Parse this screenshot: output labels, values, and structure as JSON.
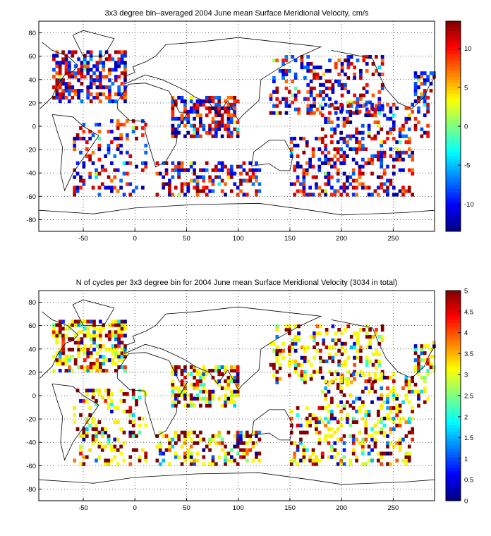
{
  "chart_data": [
    {
      "type": "heatmap",
      "title": "3x3 degree bin–averaged 2004 June mean Surface Meridional Velocity, cm/s",
      "xlabel": "",
      "ylabel": "",
      "x_ticks": [
        -50,
        0,
        50,
        100,
        150,
        200,
        250
      ],
      "y_ticks": [
        80,
        60,
        40,
        20,
        0,
        -20,
        -40,
        -60,
        -80
      ],
      "xlim": [
        -93,
        290
      ],
      "ylim": [
        -90,
        90
      ],
      "grid": true,
      "colormap": "jet",
      "colorbar": {
        "range": [
          -13.5,
          13.5
        ],
        "ticks": [
          10,
          5,
          0,
          -5,
          -10
        ]
      }
    },
    {
      "type": "heatmap",
      "title": "N of cycles per 3x3 degree bin for 2004 June mean Surface Meridional Velocity (3034 in total)",
      "xlabel": "",
      "ylabel": "",
      "x_ticks": [
        -50,
        0,
        50,
        100,
        150,
        200,
        250
      ],
      "y_ticks": [
        80,
        60,
        40,
        20,
        0,
        -20,
        -40,
        -60,
        -80
      ],
      "xlim": [
        -93,
        290
      ],
      "ylim": [
        -90,
        90
      ],
      "grid": true,
      "colormap": "jet",
      "colorbar": {
        "range": [
          0,
          5
        ],
        "ticks": [
          "5",
          "4.5",
          "4",
          "3.5",
          "3",
          "2.5",
          "2",
          "1.5",
          "1",
          "0.5",
          "0"
        ]
      }
    }
  ]
}
